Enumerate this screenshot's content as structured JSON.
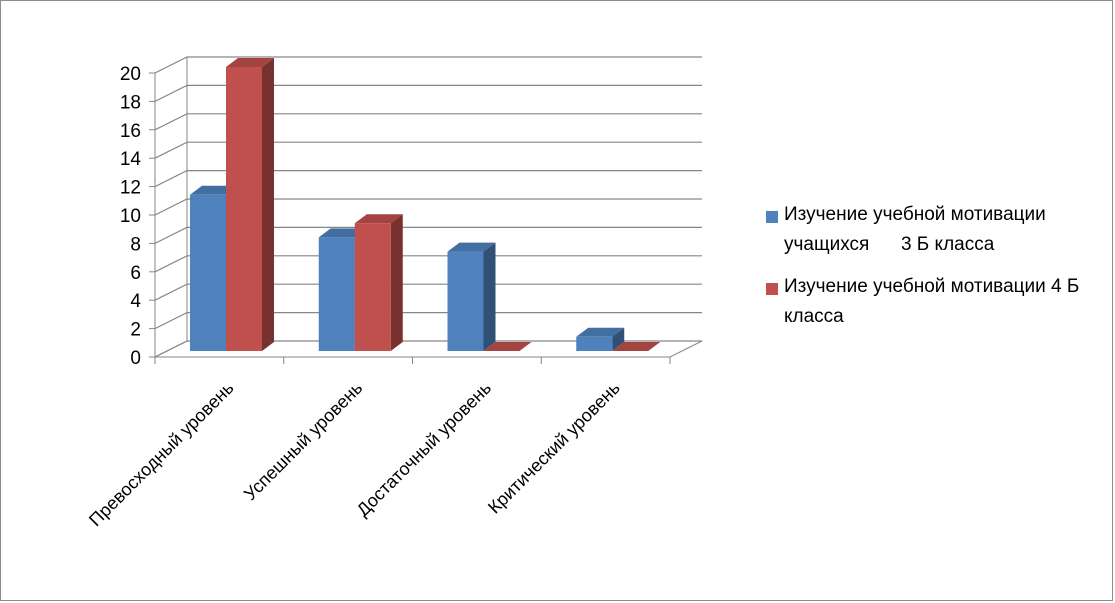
{
  "chart_data": {
    "type": "bar",
    "title": "",
    "xlabel": "",
    "ylabel": "",
    "ylim": [
      0,
      20
    ],
    "yticks": [
      "0",
      "2",
      "4",
      "6",
      "8",
      "10",
      "12",
      "14",
      "16",
      "18",
      "20"
    ],
    "categories": [
      "Превосходный уровень",
      "Успешный уровень",
      "Достаточный уровень",
      "Критический уровень"
    ],
    "series": [
      {
        "name": "Изучение учебной мотивации учащихся      3 Б класса",
        "values": [
          11,
          8,
          7,
          1
        ],
        "color": "#4F81BD"
      },
      {
        "name": "Изучение учебной мотивации 4 Б класса",
        "values": [
          20,
          9,
          0,
          0
        ],
        "color": "#C0504D"
      }
    ],
    "grid": true,
    "style": "3d-clustered-column",
    "legend_position": "right"
  }
}
